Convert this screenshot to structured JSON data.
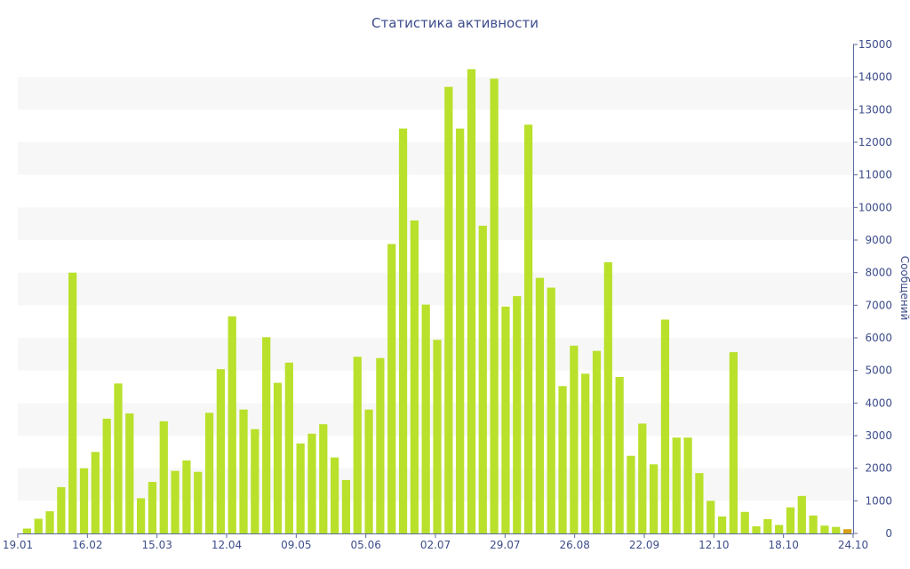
{
  "chart_data": {
    "type": "bar",
    "title": "Статистика активности",
    "xlabel": "",
    "ylabel": "Сообщений",
    "ylim": [
      0,
      15000
    ],
    "yticks": [
      0,
      1000,
      2000,
      3000,
      4000,
      5000,
      6000,
      7000,
      8000,
      9000,
      10000,
      11000,
      12000,
      13000,
      14000,
      15000
    ],
    "y_axis_side": "right",
    "grid": "alternating horizontal bands",
    "colors": {
      "bar": "#b9e02b",
      "last_bar": "#d4a017",
      "band": "#f7f7f7",
      "text": "#3d4d8c",
      "axis": "#5a6a9a"
    },
    "xticks": [
      {
        "label": "19.01",
        "index": 0
      },
      {
        "label": "16.02",
        "index": 4
      },
      {
        "label": "15.03",
        "index": 8
      },
      {
        "label": "12.04",
        "index": 12
      },
      {
        "label": "09.05",
        "index": 16
      },
      {
        "label": "05.06",
        "index": 20
      },
      {
        "label": "02.07",
        "index": 24
      },
      {
        "label": "29.07",
        "index": 28
      },
      {
        "label": "26.08",
        "index": 32
      },
      {
        "label": "22.09",
        "index": 36
      },
      {
        "label": "12.10",
        "index": 40
      },
      {
        "label": "18.10",
        "index": 44
      },
      {
        "label": "24.10",
        "index": 48
      }
    ],
    "values": [
      150,
      450,
      680,
      1420,
      8000,
      2000,
      2500,
      3520,
      4600,
      3680,
      1080,
      1580,
      3440,
      1920,
      2240,
      1890,
      3700,
      5040,
      6660,
      3800,
      3200,
      6020,
      4620,
      5240,
      2760,
      3060,
      3350,
      2330,
      1640,
      5420,
      3800,
      5380,
      8880,
      12420,
      9600,
      7020,
      5940,
      13700,
      12420,
      14240,
      9440,
      13950,
      6960,
      7280,
      12540,
      7840,
      7540,
      4520,
      5760,
      4900,
      5600,
      8320,
      4800,
      2380,
      3370,
      2120,
      6560,
      2940,
      2940,
      1850,
      1000,
      520,
      5560,
      660,
      220,
      440,
      260,
      800,
      1150,
      550,
      240,
      200,
      130
    ]
  }
}
